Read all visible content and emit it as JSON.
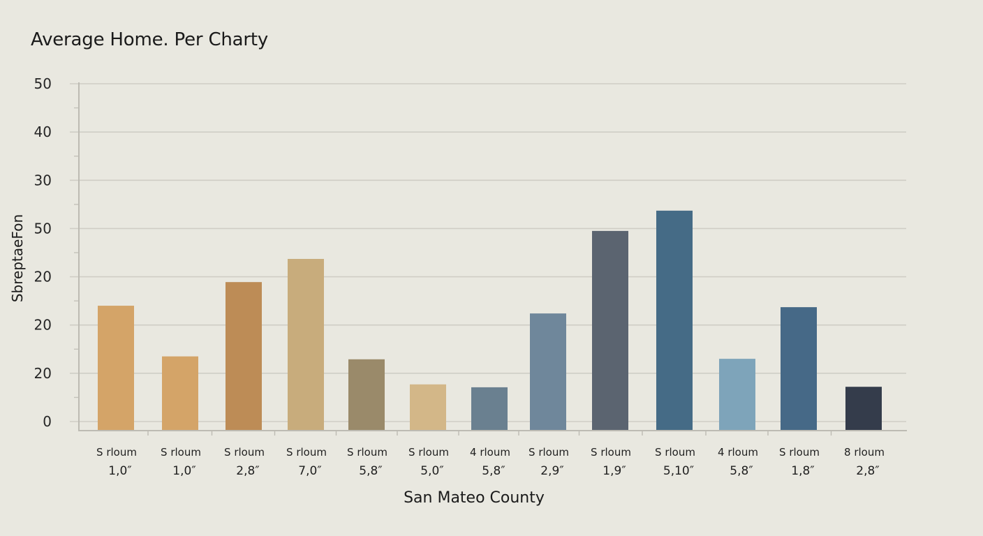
{
  "chart_data": {
    "type": "bar",
    "title": "Average Home. Per Charty",
    "xlabel": "San Mateo County",
    "ylabel": "SbreptaeFon",
    "ylim": [
      0,
      70
    ],
    "grid": true,
    "legend": "none",
    "y_tick_labels": [
      "50",
      "40",
      "30",
      "50",
      "20",
      "20",
      "20",
      "0"
    ],
    "categories": [
      {
        "line1": "S rloum",
        "line2": "1,0″"
      },
      {
        "line1": "S rloum",
        "line2": "1,0″"
      },
      {
        "line1": "S rloum",
        "line2": "2,8″"
      },
      {
        "line1": "S rloum",
        "line2": "7,0″"
      },
      {
        "line1": "S rloum",
        "line2": "5,8″"
      },
      {
        "line1": "S rloum",
        "line2": "5,0″"
      },
      {
        "line1": "4 rloum",
        "line2": "5,8″"
      },
      {
        "line1": "S rloum",
        "line2": "2,9″"
      },
      {
        "line1": "S rloum",
        "line2": "1,9″"
      },
      {
        "line1": "S rloum",
        "line2": "5,10″"
      },
      {
        "line1": "4 rloum",
        "line2": "5,8″"
      },
      {
        "line1": "S rloum",
        "line2": "1,8″"
      },
      {
        "line1": "8 rloum",
        "line2": "2,8″"
      }
    ],
    "values": [
      24.0,
      13.5,
      28.9,
      33.7,
      12.9,
      7.7,
      7.1,
      22.4,
      39.5,
      43.7,
      13.0,
      23.7,
      7.2
    ],
    "colors": [
      "#d4a468",
      "#d4a468",
      "#bd8c56",
      "#c8ac7c",
      "#9a8a6a",
      "#d3b788",
      "#6a8090",
      "#6f879b",
      "#5b6470",
      "#456b86",
      "#7ea4ba",
      "#466987",
      "#343c4b"
    ]
  }
}
